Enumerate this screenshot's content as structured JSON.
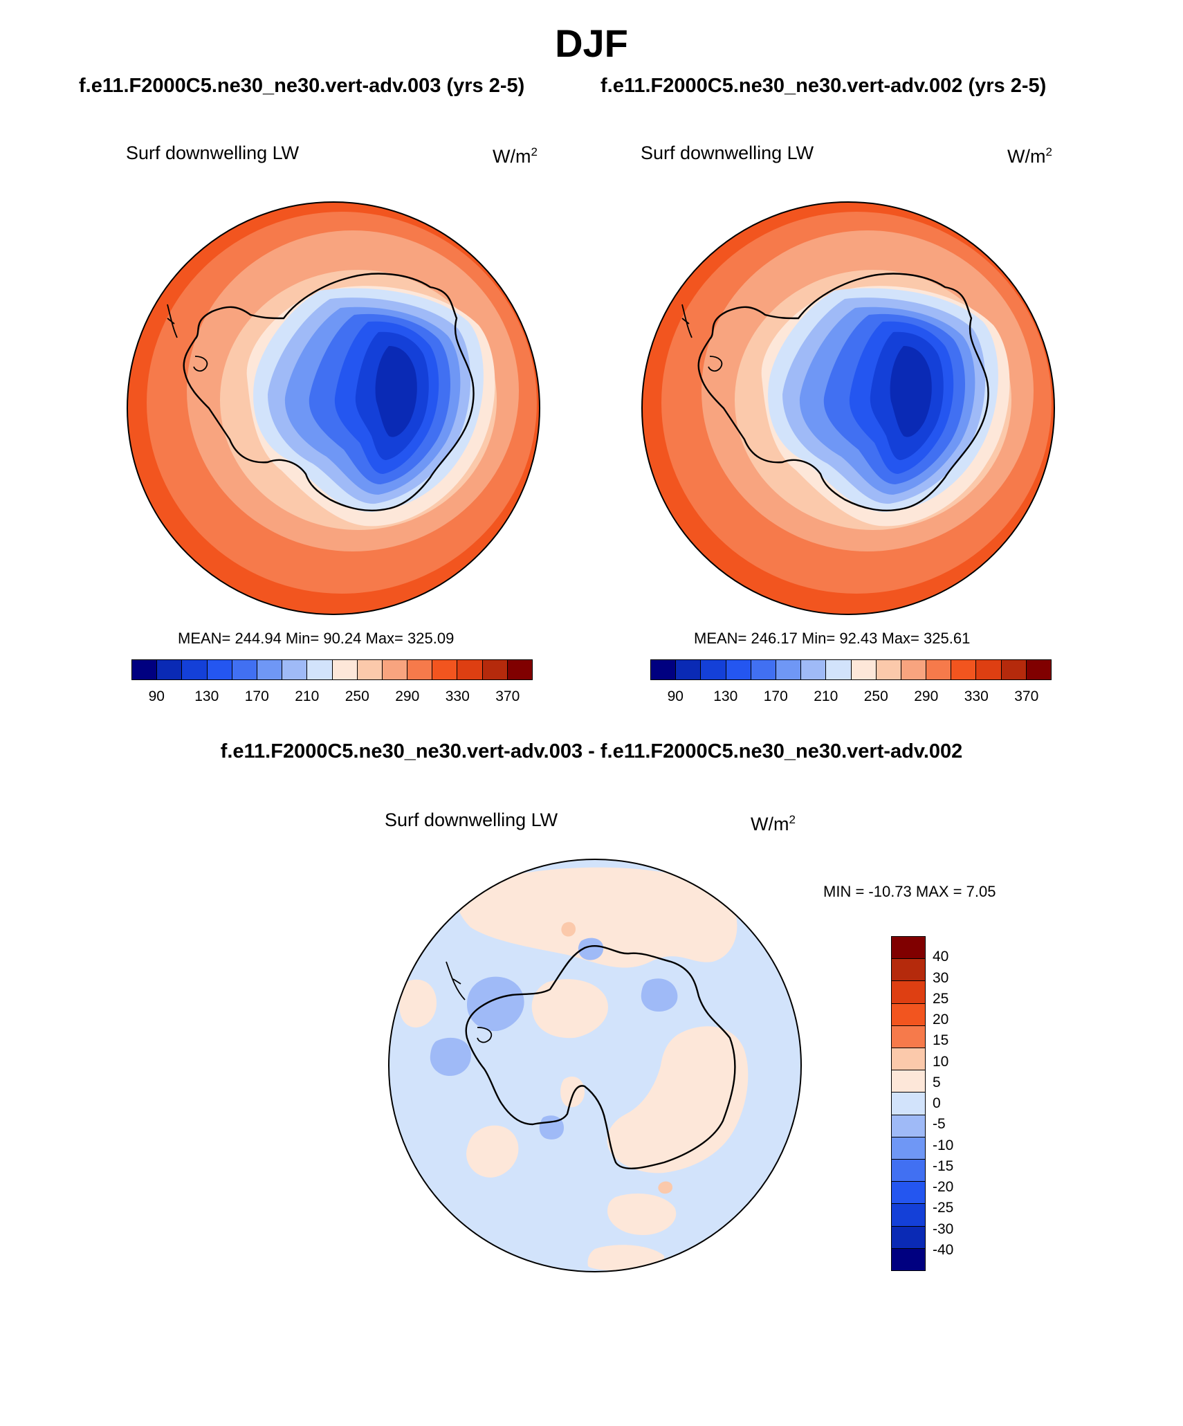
{
  "figure": {
    "season": "DJF",
    "left_title": "f.e11.F2000C5.ne30_ne30.vert-adv.003 (yrs 2-5)",
    "right_title": "f.e11.F2000C5.ne30_ne30.vert-adv.002 (yrs 2-5)",
    "diff_title": "f.e11.F2000C5.ne30_ne30.vert-adv.003 - f.e11.F2000C5.ne30_ne30.vert-adv.002"
  },
  "panels": [
    {
      "variable": "Surf downwelling LW",
      "units_base": "W/m",
      "units_exp": "2",
      "stats": "MEAN= 244.94  Min=  90.24  Max= 325.09"
    },
    {
      "variable": "Surf downwelling LW",
      "units_base": "W/m",
      "units_exp": "2",
      "stats": "MEAN= 246.17  Min=  92.43  Max= 325.61"
    }
  ],
  "diff_panel": {
    "variable": "Surf downwelling LW",
    "units_base": "W/m",
    "units_exp": "2",
    "stats": "MIN = -10.73 MAX =   7.05"
  },
  "abs_colorbar": {
    "colors": [
      "#000080",
      "#0a2ab5",
      "#1440d8",
      "#2456f0",
      "#4170f2",
      "#6f97f5",
      "#9fbaf7",
      "#d2e3fb",
      "#fde7d9",
      "#fbc9ab",
      "#f8a47f",
      "#f67a4b",
      "#f2551f",
      "#de3f12",
      "#b52a0c",
      "#800000"
    ],
    "tick_labels": [
      "90",
      "130",
      "170",
      "210",
      "250",
      "290",
      "330",
      "370"
    ]
  },
  "diff_colorbar": {
    "colors_top_to_bottom": [
      "#800000",
      "#b52a0c",
      "#de3f12",
      "#f2551f",
      "#f67a4b",
      "#fbc9ab",
      "#fde7d9",
      "#d2e3fb",
      "#9fbaf7",
      "#6f97f5",
      "#4170f2",
      "#2456f0",
      "#1440d8",
      "#0a2ab5",
      "#000080"
    ],
    "tick_labels": [
      "40",
      "30",
      "25",
      "20",
      "15",
      "10",
      "5",
      "0",
      "-5",
      "-10",
      "-15",
      "-20",
      "-25",
      "-30",
      "-40"
    ]
  },
  "maps": {
    "abs_map_colors": {
      "outer_ring": "#f2551f",
      "ring_330": "#f67a4b",
      "ring_290": "#f8a47f",
      "ring_270": "#fbc9ab",
      "coast_250": "#fde7d9",
      "edge_210": "#d2e3fb",
      "slope_190": "#9fbaf7",
      "slope_170": "#6f97f5",
      "plateau_150": "#4170f2",
      "plateau_130": "#2456f0",
      "plateau_110": "#1440d8",
      "core_90": "#0a2ab5"
    },
    "diff_map_colors": {
      "background_neg": "#d2e3fb",
      "positive_small": "#fde7d9",
      "negative_medium": "#9fbaf7",
      "positive_medium": "#fbc9ab"
    }
  }
}
